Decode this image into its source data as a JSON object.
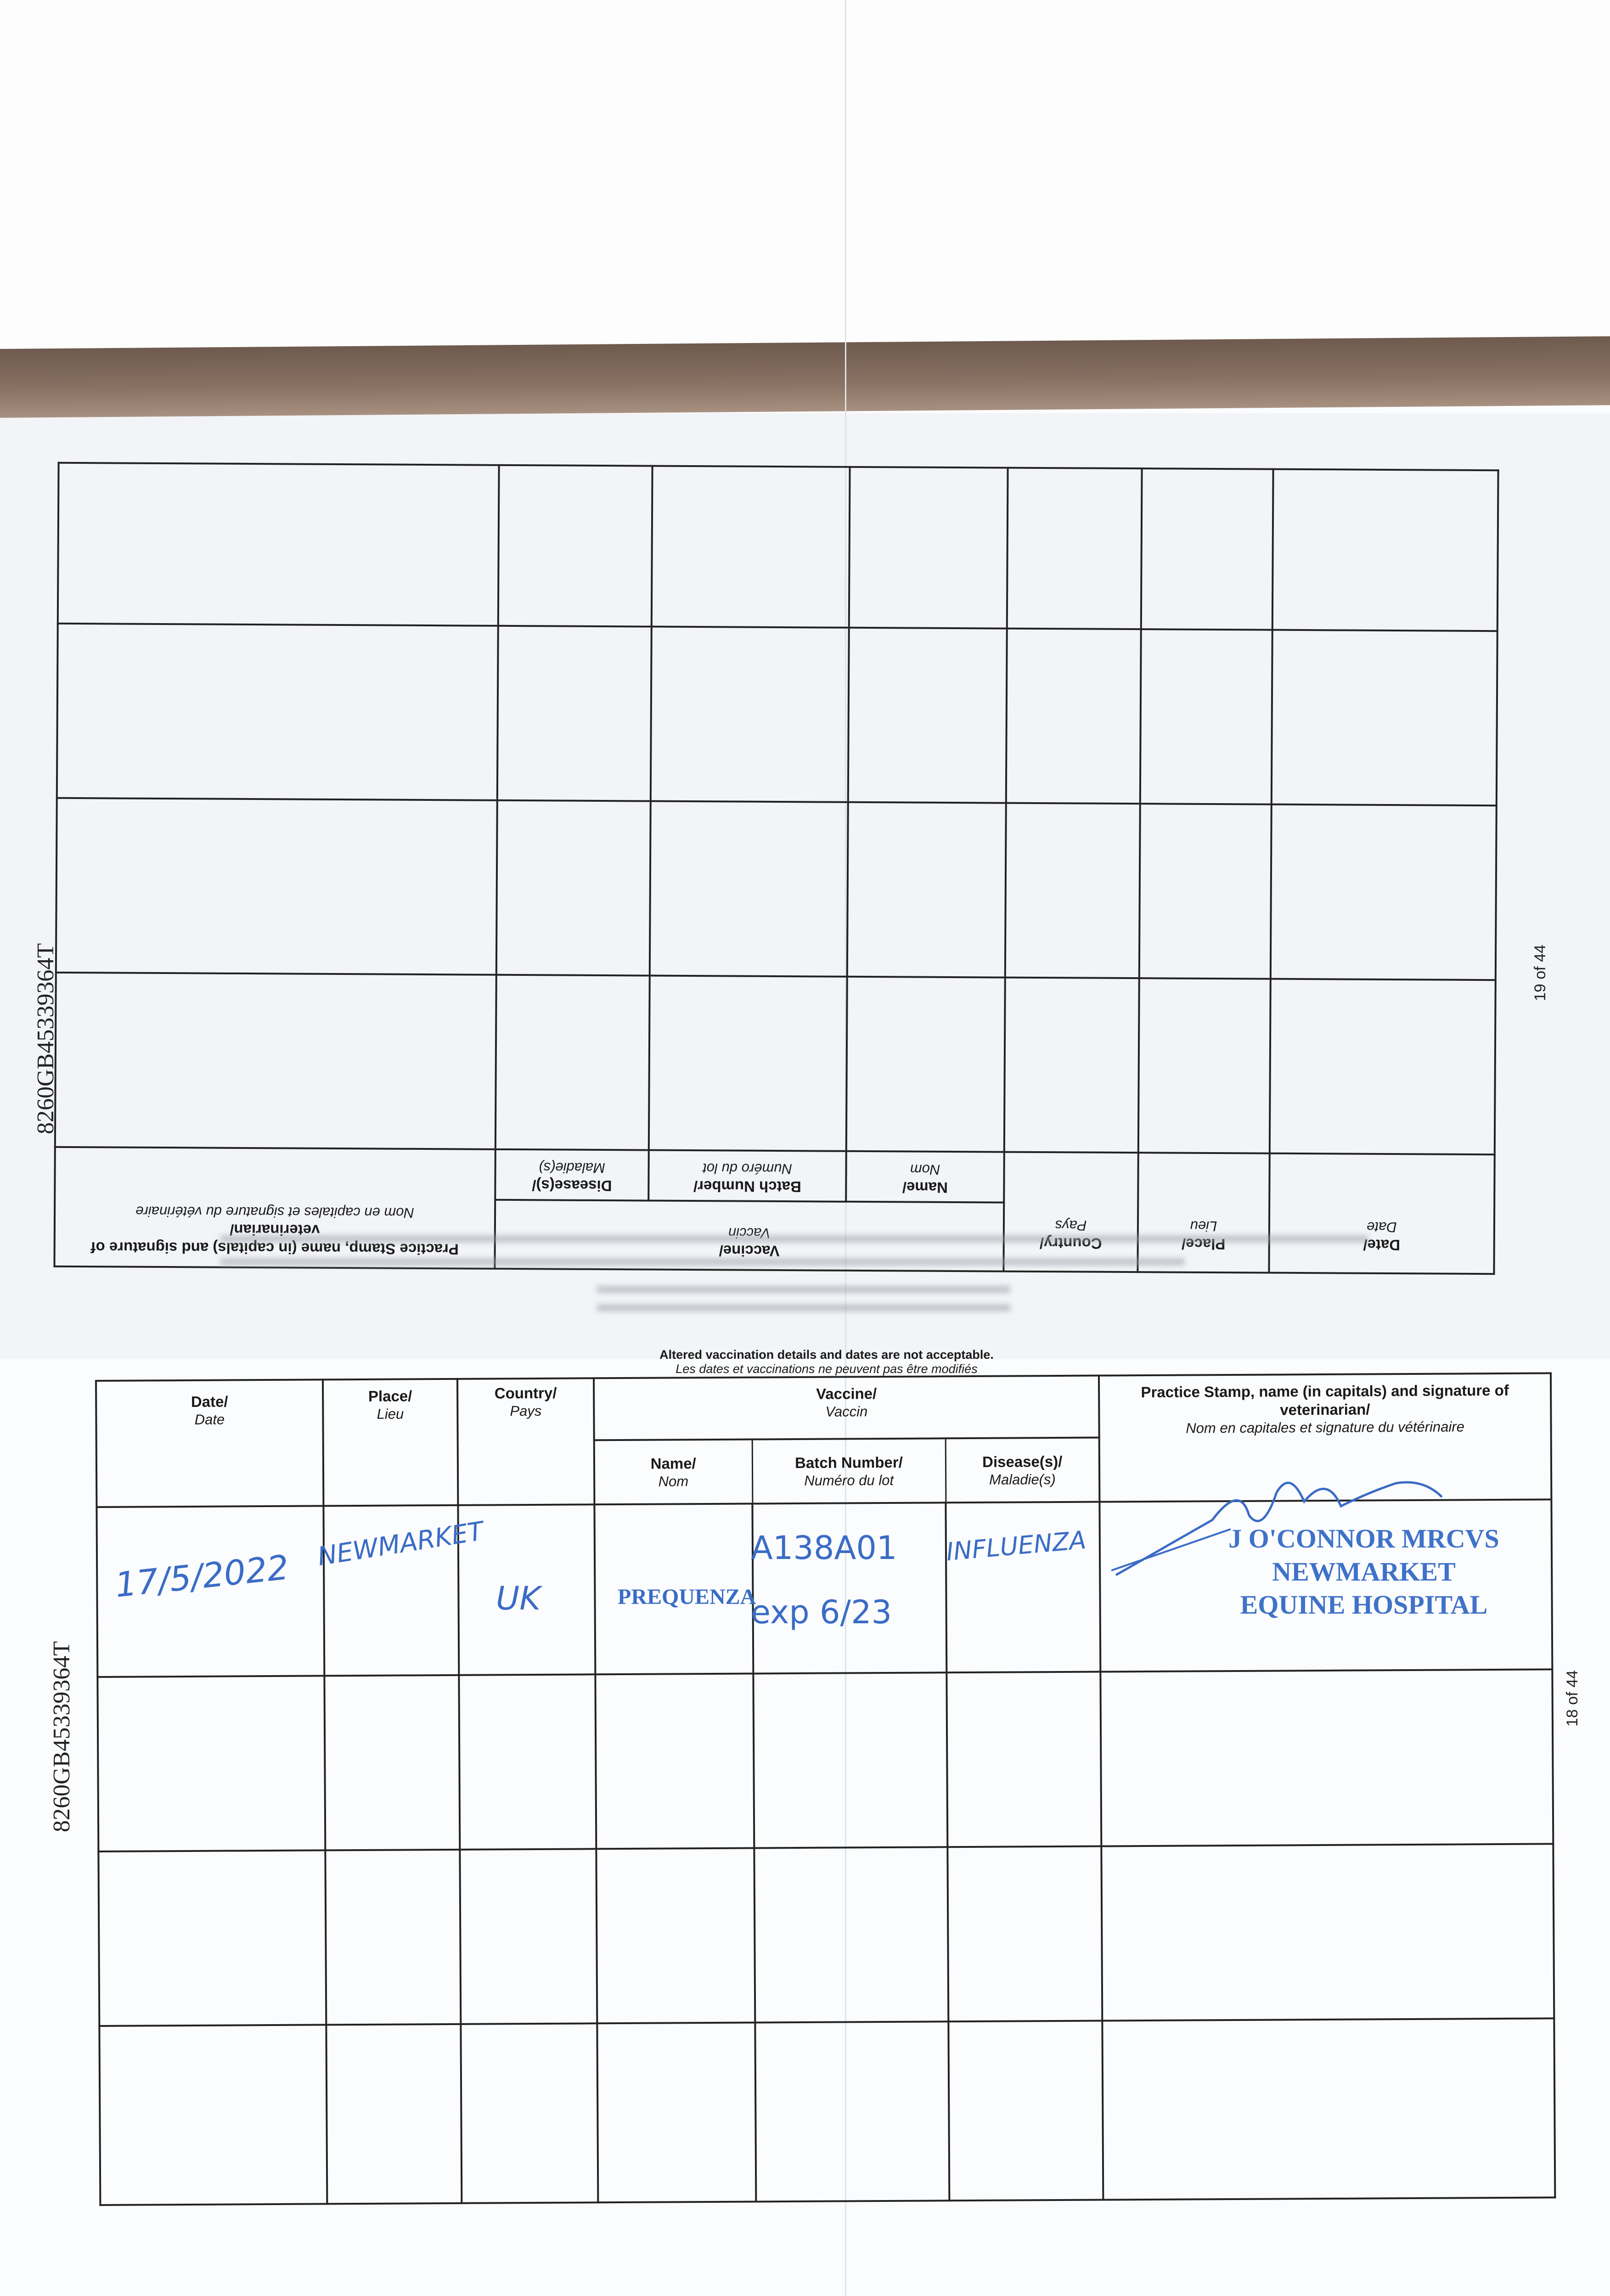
{
  "document": {
    "passport_id": "8260GB45339364T",
    "upper_page_number": "19 of 44",
    "lower_page_number": "18 of 44",
    "notice_en": "Altered vaccination details and dates are not acceptable.",
    "notice_fr": "Les dates et vaccinations ne peuvent pas être modifiés"
  },
  "table_headers": {
    "date_en": "Date/",
    "date_fr": "Date",
    "place_en": "Place/",
    "place_fr": "Lieu",
    "country_en": "Country/",
    "country_fr": "Pays",
    "vaccine_en": "Vaccine/",
    "vaccine_fr": "Vaccin",
    "name_en": "Name/",
    "name_fr": "Nom",
    "batch_en": "Batch Number/",
    "batch_fr": "Numéro du lot",
    "disease_en": "Disease(s)/",
    "disease_fr": "Maladie(s)",
    "stamp_en": "Practice Stamp, name (in capitals) and signature of veterinarian/",
    "stamp_fr": "Nom en capitales et signature du vétérinaire"
  },
  "entries": [
    {
      "date": "17/5/2022",
      "place": "NEWMARKET",
      "country": "UK",
      "vaccine_name": "PREQUENZA",
      "batch": "A138A01",
      "batch_expiry": "exp 6/23",
      "disease": "INFLUENZA",
      "stamp_line1": "J O'CONNOR MRCVS",
      "stamp_line2": "NEWMARKET",
      "stamp_line3": "EQUINE HOSPITAL"
    }
  ],
  "colors": {
    "ink": "#3a6cc6",
    "band": "#7a6456",
    "rule": "#222222"
  }
}
